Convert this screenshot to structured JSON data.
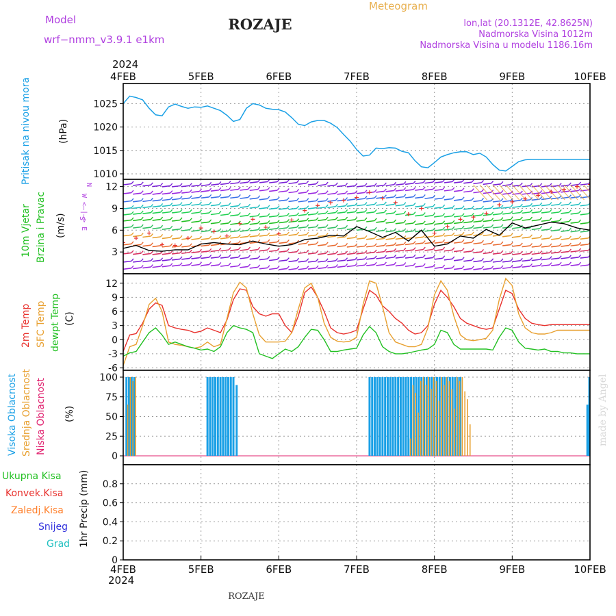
{
  "header": {
    "model_label": "Model",
    "model_name": "wrf−nmm_v3.9.1  e1km",
    "station": "ROZAJE",
    "product": "Meteogram",
    "coords": "lon,lat (20.1312E, 42.8625N)",
    "elevation": "Nadmorska Visina 1012m",
    "model_elevation": "Nadmorska Visina u modelu 1186.16m"
  },
  "footer": {
    "station": "ROZAJE",
    "watermark": "made by Angel"
  },
  "time_axis": {
    "year": "2024",
    "labels": [
      "4FEB",
      "5FEB",
      "6FEB",
      "7FEB",
      "8FEB",
      "9FEB",
      "10FEB"
    ],
    "start": "2024-02-04T00",
    "end": "2024-02-10T00"
  },
  "colors": {
    "pressure": "#1aa0e6",
    "wind_speed": "#000000",
    "gust": "#e8302c",
    "temp2m": "#e8302c",
    "sfc_temp": "#e8a030",
    "dewpoint": "#22c022",
    "cloud_high": "#1aa0e6",
    "cloud_mid": "#e8a030",
    "cloud_low": "#e0206e",
    "precip_total": "#22c022",
    "precip_conv": "#e8302c",
    "precip_frz": "#ff7f2a",
    "precip_snow": "#3333dd",
    "precip_hail": "#20c0c0",
    "wind_dir_label": "#b040e0"
  },
  "chart_data": [
    {
      "type": "line",
      "panel": "pressure",
      "ylabel": [
        "Pritisak na nivou mora",
        "(hPa)"
      ],
      "ylim": [
        1010,
        1029
      ],
      "yticks": [
        1010,
        1015,
        1020,
        1025
      ],
      "grid": true,
      "series": [
        {
          "name": "Pritisak na nivou mora",
          "x_hours": [
            0,
            2,
            4,
            6,
            8,
            10,
            12,
            14,
            16,
            18,
            20,
            22,
            24,
            26,
            28,
            30,
            32,
            34,
            36,
            38,
            40,
            42,
            44,
            46,
            48,
            50,
            52,
            54,
            56,
            58,
            60,
            62,
            64,
            66,
            68,
            70,
            72,
            74,
            76,
            78,
            80,
            82,
            84,
            86,
            88,
            90,
            92,
            94,
            96,
            98,
            100,
            102,
            104,
            106,
            108,
            110,
            112,
            114,
            116,
            118,
            120,
            122,
            124,
            126,
            128,
            130,
            132,
            134,
            136,
            138,
            140,
            142,
            144
          ],
          "values": [
            1025.0,
            1026.6,
            1026.3,
            1025.8,
            1024.0,
            1022.6,
            1022.4,
            1024.3,
            1024.9,
            1024.4,
            1024.0,
            1024.3,
            1024.2,
            1024.5,
            1024.0,
            1023.5,
            1022.5,
            1021.2,
            1021.6,
            1024.0,
            1025.0,
            1024.7,
            1024.0,
            1023.8,
            1023.7,
            1023.2,
            1022.0,
            1020.6,
            1020.3,
            1021.1,
            1021.4,
            1021.4,
            1020.8,
            1019.9,
            1018.4,
            1017.0,
            1015.2,
            1013.8,
            1014.0,
            1015.5,
            1015.4,
            1015.6,
            1015.5,
            1014.8,
            1014.5,
            1012.8,
            1011.5,
            1011.3,
            1012.4,
            1013.6,
            1014.1,
            1014.5,
            1014.7,
            1014.7,
            1014.1,
            1014.4,
            1013.6,
            1012.0,
            1010.8,
            1010.6,
            1011.6,
            1012.6,
            1013.0,
            1013.1,
            1013.1,
            1013.1,
            1013.1,
            1013.1,
            1013.1,
            1013.1,
            1013.1,
            1013.1,
            1013.1
          ]
        }
      ]
    },
    {
      "type": "line",
      "panel": "wind",
      "ylabel": [
        "10m Vjetar",
        "Brzina i Pravac",
        "(m/s)"
      ],
      "direction_legend": [
        "N",
        "W <–|–> E",
        "S"
      ],
      "ylim": [
        0,
        13
      ],
      "yticks": [
        3,
        6,
        9,
        12
      ],
      "grid": true,
      "series": [
        {
          "name": "10m Vjetar Brzina",
          "x_hours": [
            0,
            4,
            8,
            12,
            16,
            20,
            24,
            28,
            32,
            36,
            40,
            44,
            48,
            52,
            56,
            60,
            64,
            68,
            72,
            76,
            80,
            84,
            88,
            92,
            96,
            100,
            104,
            108,
            112,
            116,
            120,
            124,
            128,
            132,
            136,
            140,
            144
          ],
          "values": [
            3.5,
            3.9,
            3.2,
            3.1,
            3.3,
            3.3,
            4.1,
            4.3,
            4.1,
            4.0,
            4.5,
            4.1,
            3.8,
            4.0,
            4.7,
            4.9,
            5.3,
            5.2,
            6.5,
            5.8,
            5.0,
            5.7,
            4.5,
            6.0,
            3.8,
            4.1,
            5.2,
            4.9,
            6.1,
            5.3,
            7.0,
            6.3,
            6.7,
            7.1,
            6.9,
            6.3,
            6.0
          ]
        },
        {
          "name": "Udari",
          "x_hours": [
            0,
            4,
            8,
            12,
            16,
            20,
            24,
            28,
            32,
            36,
            40,
            44,
            48,
            52,
            56,
            60,
            64,
            68,
            72,
            76,
            80,
            84,
            88,
            92,
            96,
            100,
            104,
            108,
            112,
            116,
            120,
            124,
            128,
            132,
            136,
            140,
            144
          ],
          "values": [
            4.3,
            4.9,
            5.6,
            4.0,
            3.9,
            4.9,
            6.3,
            5.8,
            5.2,
            6.9,
            7.5,
            6.4,
            5.5,
            7.4,
            8.7,
            9.4,
            9.8,
            10.1,
            10.5,
            11.2,
            10.4,
            9.8,
            8.2,
            9.0,
            5.6,
            6.5,
            7.5,
            7.8,
            8.3,
            9.5,
            9.9,
            10.3,
            10.8,
            11.3,
            11.6,
            12.0,
            12.3
          ]
        }
      ]
    },
    {
      "type": "line",
      "panel": "temperature",
      "ylabel": [
        "2m Temp",
        "SFC Temp",
        "dewpt Temp",
        "(C)"
      ],
      "ylim": [
        -6.5,
        14
      ],
      "yticks": [
        -6,
        -3,
        0,
        3,
        6,
        9,
        12
      ],
      "grid": true,
      "series": [
        {
          "name": "2m Temp",
          "x_hours": [
            0,
            2,
            4,
            6,
            8,
            10,
            12,
            14,
            16,
            18,
            20,
            22,
            24,
            26,
            28,
            30,
            32,
            34,
            36,
            38,
            40,
            42,
            44,
            46,
            48,
            50,
            52,
            54,
            56,
            58,
            60,
            62,
            64,
            66,
            68,
            70,
            72,
            74,
            76,
            78,
            80,
            82,
            84,
            86,
            88,
            90,
            92,
            94,
            96,
            98,
            100,
            102,
            104,
            106,
            108,
            110,
            112,
            114,
            116,
            118,
            120,
            122,
            124,
            126,
            128,
            130,
            132,
            134,
            136,
            138,
            140,
            142,
            144
          ],
          "values": [
            -2.5,
            1.0,
            1.3,
            3.5,
            6.5,
            7.8,
            7.3,
            3.0,
            2.5,
            2.2,
            2.0,
            1.5,
            1.8,
            2.5,
            2.0,
            1.5,
            4.2,
            8.5,
            10.8,
            10.5,
            7.0,
            5.5,
            5.0,
            5.5,
            5.5,
            3.0,
            1.5,
            5.0,
            10.0,
            11.2,
            9.0,
            6.0,
            2.5,
            1.5,
            1.2,
            1.5,
            2.0,
            6.5,
            10.5,
            9.5,
            7.2,
            6.0,
            4.5,
            3.5,
            2.0,
            1.2,
            1.5,
            3.0,
            7.5,
            10.5,
            9.0,
            7.0,
            4.5,
            3.5,
            3.0,
            2.5,
            2.2,
            2.5,
            6.5,
            10.5,
            9.8,
            6.5,
            4.5,
            3.5,
            3.2,
            3.0,
            3.2,
            3.2,
            3.2,
            3.2,
            3.2,
            3.2,
            3.2
          ]
        },
        {
          "name": "SFC Temp",
          "x_hours": [
            0,
            2,
            4,
            6,
            8,
            10,
            12,
            14,
            16,
            18,
            20,
            22,
            24,
            26,
            28,
            30,
            32,
            34,
            36,
            38,
            40,
            42,
            44,
            46,
            48,
            50,
            52,
            54,
            56,
            58,
            60,
            62,
            64,
            66,
            68,
            70,
            72,
            74,
            76,
            78,
            80,
            82,
            84,
            86,
            88,
            90,
            92,
            94,
            96,
            98,
            100,
            102,
            104,
            106,
            108,
            110,
            112,
            114,
            116,
            118,
            120,
            122,
            124,
            126,
            128,
            130,
            132,
            134,
            136,
            138,
            140,
            142,
            144
          ],
          "values": [
            -5.5,
            -1.5,
            -1.0,
            3.0,
            7.5,
            8.8,
            6.0,
            -0.5,
            -1.0,
            -1.2,
            -1.5,
            -1.8,
            -1.5,
            -0.5,
            -1.5,
            -1.0,
            4.5,
            10.0,
            12.2,
            11.0,
            5.5,
            1.0,
            -0.5,
            -0.5,
            -0.5,
            -0.3,
            1.5,
            6.5,
            11.0,
            12.0,
            9.0,
            3.5,
            0.5,
            -0.3,
            -0.5,
            -0.3,
            0.5,
            7.5,
            12.5,
            12.0,
            7.0,
            1.5,
            -0.5,
            -1.0,
            -1.5,
            -1.5,
            -1.0,
            2.5,
            9.5,
            12.5,
            10.5,
            5.0,
            1.0,
            0.0,
            -0.2,
            0.0,
            0.3,
            2.0,
            8.5,
            13.0,
            11.5,
            5.5,
            2.5,
            1.5,
            1.2,
            1.2,
            1.5,
            2.0,
            2.0,
            2.0,
            2.0,
            2.0,
            2.0
          ]
        },
        {
          "name": "dewpt Temp",
          "x_hours": [
            0,
            2,
            4,
            6,
            8,
            10,
            12,
            14,
            16,
            18,
            20,
            22,
            24,
            26,
            28,
            30,
            32,
            34,
            36,
            38,
            40,
            42,
            44,
            46,
            48,
            50,
            52,
            54,
            56,
            58,
            60,
            62,
            64,
            66,
            68,
            70,
            72,
            74,
            76,
            78,
            80,
            82,
            84,
            86,
            88,
            90,
            92,
            94,
            96,
            98,
            100,
            102,
            104,
            106,
            108,
            110,
            112,
            114,
            116,
            118,
            120,
            122,
            124,
            126,
            128,
            130,
            132,
            134,
            136,
            138,
            140,
            142,
            144
          ],
          "values": [
            -3.5,
            -2.8,
            -2.5,
            -0.5,
            1.5,
            2.5,
            1.0,
            -1.0,
            -0.5,
            -1.0,
            -1.5,
            -1.8,
            -2.2,
            -2.0,
            -2.5,
            -1.5,
            1.5,
            3.0,
            2.5,
            2.2,
            1.5,
            -3.0,
            -3.5,
            -4.0,
            -3.0,
            -2.0,
            -2.5,
            -1.5,
            0.5,
            2.2,
            2.0,
            0.0,
            -2.5,
            -2.5,
            -2.2,
            -2.0,
            -1.8,
            1.0,
            2.8,
            1.5,
            -1.5,
            -2.5,
            -3.0,
            -3.0,
            -2.8,
            -2.5,
            -2.2,
            -2.0,
            -1.0,
            2.0,
            1.5,
            -1.0,
            -2.0,
            -2.0,
            -2.0,
            -2.0,
            -2.0,
            -2.2,
            0.5,
            2.5,
            2.0,
            -0.5,
            -1.8,
            -2.0,
            -2.2,
            -2.0,
            -2.5,
            -2.5,
            -2.8,
            -2.8,
            -3.0,
            -3.0,
            -3.0
          ]
        }
      ]
    },
    {
      "type": "bar",
      "panel": "clouds",
      "ylabel": [
        "Visoka Oblacnost",
        "Srednja Oblacnost",
        "Niska Oblacnost",
        "(%)"
      ],
      "ylim": [
        0,
        100
      ],
      "yticks": [
        0,
        25,
        50,
        75,
        100
      ],
      "grid": true,
      "series": [
        {
          "name": "Visoka Oblacnost",
          "x_hours": [
            1,
            1.8,
            2.6,
            3.4,
            26,
            26.8,
            27.6,
            28.4,
            29.2,
            30,
            30.8,
            31.6,
            32.4,
            33.2,
            34,
            35,
            76,
            76.8,
            77.6,
            78.4,
            79.2,
            80,
            80.8,
            81.6,
            82.4,
            83.2,
            84,
            84.8,
            85.6,
            86.4,
            87.2,
            88,
            88.8,
            89.6,
            90.4,
            91.2,
            92,
            92.8,
            93.6,
            94.4,
            95.2,
            96,
            96.8,
            97.6,
            98.4,
            99.2,
            100,
            100.8,
            101.6,
            102.4,
            103.2,
            104,
            143.2,
            143.8
          ],
          "values": [
            100,
            100,
            100,
            100,
            100,
            100,
            100,
            100,
            100,
            100,
            100,
            100,
            100,
            100,
            100,
            90,
            100,
            100,
            100,
            100,
            100,
            100,
            100,
            100,
            100,
            100,
            100,
            100,
            100,
            100,
            100,
            100,
            100,
            100,
            100,
            100,
            100,
            100,
            100,
            100,
            100,
            100,
            100,
            100,
            100,
            100,
            100,
            100,
            100,
            100,
            100,
            100,
            65,
            100
          ]
        },
        {
          "name": "Srednja Oblacnost",
          "x_hours": [
            1.4,
            2.2,
            3.0,
            3.8,
            88.6,
            89.4,
            90.2,
            91.0,
            91.8,
            92.6,
            93.4,
            94.2,
            95.0,
            95.8,
            96.6,
            97.4,
            98.2,
            99.0,
            99.8,
            100.6,
            101.4,
            102.2,
            103.0,
            103.8,
            104.6,
            105.4,
            106.2,
            107.0
          ],
          "values": [
            65,
            100,
            95,
            100,
            22,
            90,
            80,
            55,
            95,
            100,
            90,
            100,
            85,
            100,
            95,
            70,
            100,
            90,
            100,
            95,
            85,
            60,
            100,
            95,
            100,
            82,
            72,
            40
          ]
        },
        {
          "name": "Niska Oblacnost",
          "x_hours": [],
          "values": []
        }
      ]
    },
    {
      "type": "bar",
      "panel": "precip",
      "ylabel": [
        "1hr Precip (mm)"
      ],
      "legend": [
        "Ukupna  Kisa",
        "Konvek.Kisa",
        "Zaledj.Kisa",
        "Snijeg",
        "Grad"
      ],
      "ylim": [
        0,
        1.0
      ],
      "yticks": [
        0,
        0.2,
        0.4,
        0.6,
        0.8
      ],
      "grid": true,
      "series": [
        {
          "name": "Ukupna  Kisa",
          "x_hours": [],
          "values": []
        }
      ]
    }
  ]
}
